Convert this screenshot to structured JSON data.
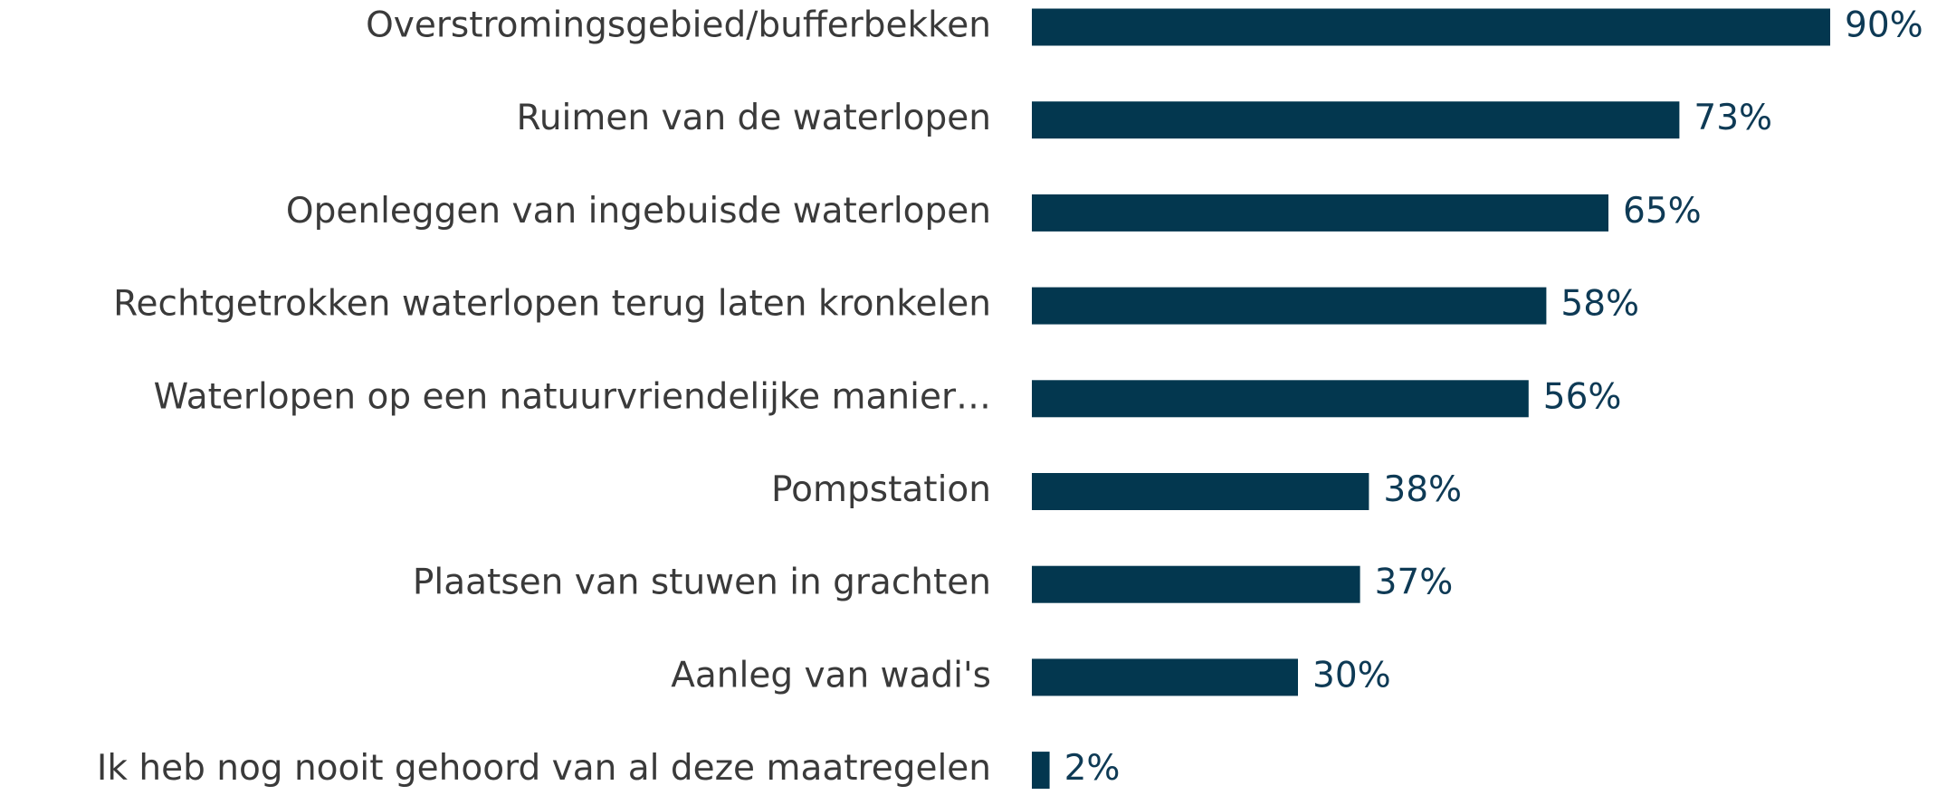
{
  "chart_data": {
    "type": "bar",
    "orientation": "horizontal",
    "color": "#03374f",
    "categories": [
      "Overstromingsgebied/bufferbekken",
      "Ruimen van de waterlopen",
      "Openleggen van ingebuisde waterlopen",
      "Rechtgetrokken waterlopen terug laten kronkelen",
      "Waterlopen op een natuurvriendelijke manier…",
      "Pompstation",
      "Plaatsen van stuwen in grachten",
      "Aanleg van wadi's",
      "Ik heb nog nooit gehoord van al deze maatregelen"
    ],
    "values": [
      90,
      73,
      65,
      58,
      56,
      38,
      37,
      30,
      2
    ],
    "value_labels": [
      "90%",
      "73%",
      "65%",
      "58%",
      "56%",
      "38%",
      "37%",
      "30%",
      "2%"
    ]
  }
}
